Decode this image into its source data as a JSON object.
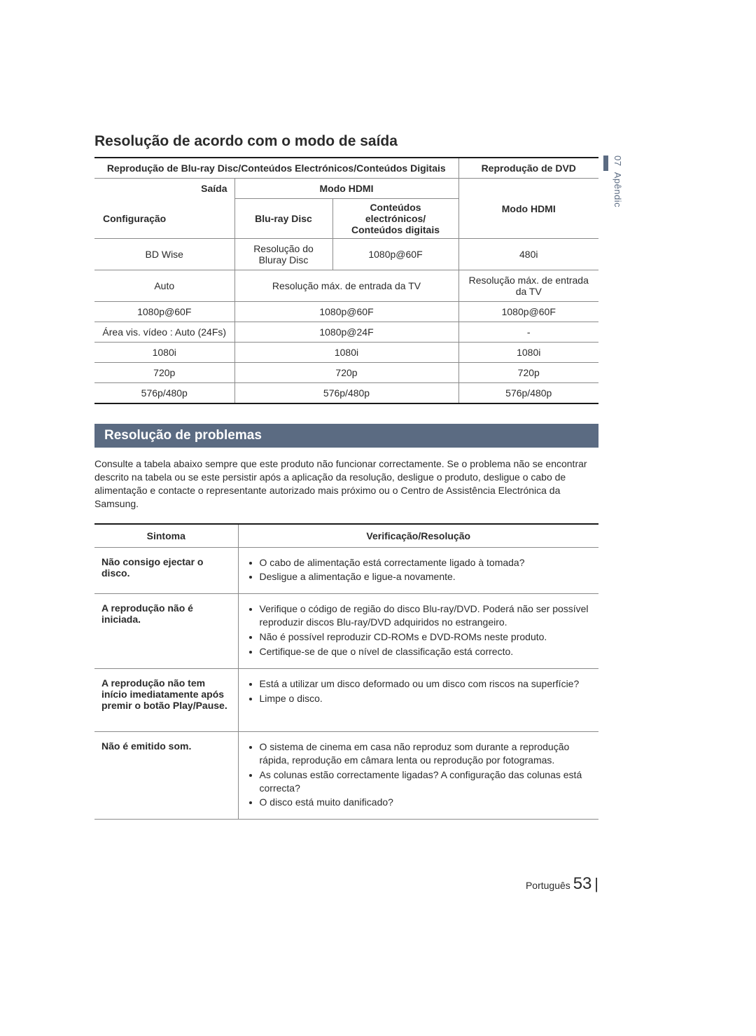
{
  "side": {
    "chapter": "07",
    "label": "Apêndic"
  },
  "title1": "Resolução de acordo com o modo de saída",
  "resTable": {
    "hdr_bluray": "Reprodução de Blu-ray Disc/Conteúdos Electrónicos/Conteúdos Digitais",
    "hdr_dvd": "Reprodução de DVD",
    "hdr_saida": "Saída",
    "hdr_modoHDMI": "Modo HDMI",
    "hdr_config": "Configuração",
    "hdr_bluraydisc": "Blu-ray Disc",
    "hdr_conteudos": "Conteúdos electrónicos/\nConteúdos digitais",
    "rows": [
      {
        "cfg": "BD Wise",
        "c1": "Resolução do Bluray Disc",
        "c2": "1080p@60F",
        "dvd": "480i"
      },
      {
        "cfg": "Auto",
        "c1_span": "Resolução máx. de entrada da TV",
        "dvd": "Resolução máx. de entrada da TV"
      },
      {
        "cfg": "1080p@60F",
        "c1_span": "1080p@60F",
        "dvd": "1080p@60F"
      },
      {
        "cfg": "Área vis. vídeo : Auto (24Fs)",
        "c1_span": "1080p@24F",
        "dvd": "-"
      },
      {
        "cfg": "1080i",
        "c1_span": "1080i",
        "dvd": "1080i"
      },
      {
        "cfg": "720p",
        "c1_span": "720p",
        "dvd": "720p"
      },
      {
        "cfg": "576p/480p",
        "c1_span": "576p/480p",
        "dvd": "576p/480p"
      }
    ]
  },
  "banner": "Resolução de problemas",
  "intro": "Consulte a tabela abaixo sempre que este produto não funcionar correctamente. Se o problema não se encontrar descrito na tabela ou se este persistir após a aplicação da resolução, desligue o produto, desligue o cabo de alimentação e contacte o representante autorizado mais próximo ou o Centro de Assistência Electrónica da Samsung.",
  "ts": {
    "col_sym": "Sintoma",
    "col_res": "Verificação/Resolução",
    "rows": [
      {
        "sym": "Não consigo ejectar o disco.",
        "items": [
          "O cabo de alimentação está correctamente ligado à tomada?",
          "Desligue a alimentação e ligue-a novamente."
        ]
      },
      {
        "sym": "A reprodução não é iniciada.",
        "items": [
          "Verifique o código de região do disco Blu-ray/DVD. Poderá não ser possível reproduzir discos Blu-ray/DVD adquiridos no estrangeiro.",
          "Não é possível reproduzir CD-ROMs e DVD-ROMs neste produto.",
          "Certifique-se de que o nível de classificação está correcto."
        ]
      },
      {
        "sym": "A reprodução não tem início imediatamente após premir o botão Play/Pause.",
        "items": [
          "Está a utilizar um disco deformado ou um disco com riscos na superfície?",
          "Limpe o disco."
        ],
        "tall": true
      },
      {
        "sym": "Não é emitido som.",
        "items": [
          "O sistema de cinema em casa não reproduz som durante a reprodução rápida, reprodução em câmara lenta ou reprodução por fotogramas.",
          "As colunas estão correctamente ligadas? A configuração das colunas está correcta?",
          "O disco está muito danificado?"
        ]
      }
    ]
  },
  "footer": {
    "lang": "Português",
    "page": "53"
  }
}
